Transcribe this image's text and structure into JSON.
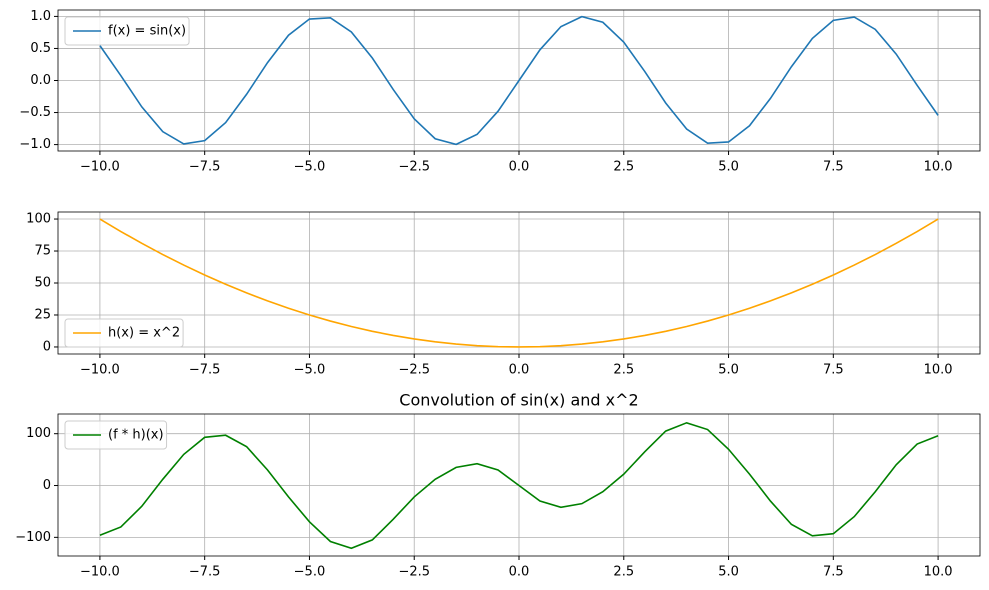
{
  "chart_data": [
    {
      "type": "line",
      "x": [
        -10,
        -9.5,
        -9,
        -8.5,
        -8,
        -7.5,
        -7,
        -6.5,
        -6,
        -5.5,
        -5,
        -4.5,
        -4,
        -3.5,
        -3,
        -2.5,
        -2,
        -1.5,
        -1,
        -0.5,
        0,
        0.5,
        1,
        1.5,
        2,
        2.5,
        3,
        3.5,
        4,
        4.5,
        5,
        5.5,
        6,
        6.5,
        7,
        7.5,
        8,
        8.5,
        9,
        9.5,
        10
      ],
      "series": [
        {
          "name": "f(x) = sin(x)",
          "color": "#1f77b4",
          "values": [
            0.544,
            0.075,
            -0.412,
            -0.798,
            -0.989,
            -0.938,
            -0.657,
            -0.215,
            0.279,
            0.706,
            0.959,
            0.978,
            0.757,
            0.351,
            -0.141,
            -0.598,
            -0.909,
            -0.997,
            -0.841,
            -0.479,
            0,
            0.479,
            0.841,
            0.997,
            0.909,
            0.598,
            0.141,
            -0.351,
            -0.757,
            -0.978,
            -0.959,
            -0.706,
            -0.279,
            0.215,
            0.657,
            0.938,
            0.989,
            0.798,
            0.412,
            -0.075,
            -0.544
          ]
        }
      ],
      "xlim": [
        -11,
        11
      ],
      "ylim": [
        -1.1,
        1.1
      ],
      "xticks": [
        {
          "value": -10,
          "label": "−10.0"
        },
        {
          "value": -7.5,
          "label": "−7.5"
        },
        {
          "value": -5,
          "label": "−5.0"
        },
        {
          "value": -2.5,
          "label": "−2.5"
        },
        {
          "value": 0,
          "label": "0.0"
        },
        2.5,
        {
          "value": 5,
          "label": "5.0"
        },
        7.5,
        {
          "value": 10,
          "label": "10.0"
        }
      ],
      "yticks": [
        {
          "value": -1,
          "label": "−1.0"
        },
        {
          "value": -0.5,
          "label": "−0.5"
        },
        {
          "value": 0,
          "label": "0.0"
        },
        0.5,
        {
          "value": 1,
          "label": "1.0"
        }
      ],
      "grid": true,
      "legend": "upper left"
    },
    {
      "type": "line",
      "x": [
        -10,
        -9.5,
        -9,
        -8.5,
        -8,
        -7.5,
        -7,
        -6.5,
        -6,
        -5.5,
        -5,
        -4.5,
        -4,
        -3.5,
        -3,
        -2.5,
        -2,
        -1.5,
        -1,
        -0.5,
        0,
        0.5,
        1,
        1.5,
        2,
        2.5,
        3,
        3.5,
        4,
        4.5,
        5,
        5.5,
        6,
        6.5,
        7,
        7.5,
        8,
        8.5,
        9,
        9.5,
        10
      ],
      "series": [
        {
          "name": "h(x) = x^2",
          "color": "#ffa500",
          "values": [
            100,
            90.25,
            81,
            72.25,
            64,
            56.25,
            49,
            42.25,
            36,
            30.25,
            25,
            20.25,
            16,
            12.25,
            9,
            6.25,
            4,
            2.25,
            1,
            0.25,
            0,
            0.25,
            1,
            2.25,
            4,
            6.25,
            9,
            12.25,
            16,
            20.25,
            25,
            30.25,
            36,
            42.25,
            49,
            56.25,
            64,
            72.25,
            81,
            90.25,
            100
          ]
        }
      ],
      "xlim": [
        -11,
        11
      ],
      "ylim": [
        -5.5,
        105.5
      ],
      "xticks": [
        {
          "value": -10,
          "label": "−10.0"
        },
        {
          "value": -7.5,
          "label": "−7.5"
        },
        {
          "value": -5,
          "label": "−5.0"
        },
        {
          "value": -2.5,
          "label": "−2.5"
        },
        {
          "value": 0,
          "label": "0.0"
        },
        2.5,
        {
          "value": 5,
          "label": "5.0"
        },
        7.5,
        {
          "value": 10,
          "label": "10.0"
        }
      ],
      "yticks": [
        0,
        25,
        50,
        75,
        100
      ],
      "grid": true,
      "legend": "lower left"
    },
    {
      "type": "line",
      "title": "Convolution of sin(x) and x^2",
      "x": [
        -10,
        -9.5,
        -9,
        -8.5,
        -8,
        -7.5,
        -7,
        -6.5,
        -6,
        -5.5,
        -5,
        -4.5,
        -4,
        -3.5,
        -3,
        -2.5,
        -2,
        -1.5,
        -1,
        -0.5,
        0,
        0.5,
        1,
        1.5,
        2,
        2.5,
        3,
        3.5,
        4,
        4.5,
        5,
        5.5,
        6,
        6.5,
        7,
        7.5,
        8,
        8.5,
        9,
        9.5,
        10
      ],
      "series": [
        {
          "name": "(f * h)(x)",
          "color": "#008000",
          "values": [
            -96,
            -80,
            -40,
            12,
            60,
            93,
            97,
            75,
            30,
            -22,
            -70,
            -108,
            -121,
            -105,
            -65,
            -22,
            12,
            35,
            42,
            30,
            0,
            -30,
            -42,
            -35,
            -12,
            22,
            65,
            105,
            121,
            108,
            70,
            22,
            -30,
            -75,
            -97,
            -93,
            -60,
            -12,
            40,
            80,
            96
          ]
        }
      ],
      "xlim": [
        -11,
        11
      ],
      "ylim": [
        -136,
        138
      ],
      "xticks": [
        {
          "value": -10,
          "label": "−10.0"
        },
        {
          "value": -7.5,
          "label": "−7.5"
        },
        {
          "value": -5,
          "label": "−5.0"
        },
        {
          "value": -2.5,
          "label": "−2.5"
        },
        {
          "value": 0,
          "label": "0.0"
        },
        2.5,
        {
          "value": 5,
          "label": "5.0"
        },
        7.5,
        {
          "value": 10,
          "label": "10.0"
        }
      ],
      "yticks": [
        {
          "value": -100,
          "label": "−100"
        },
        0,
        100
      ],
      "grid": true,
      "legend": "upper left"
    }
  ]
}
